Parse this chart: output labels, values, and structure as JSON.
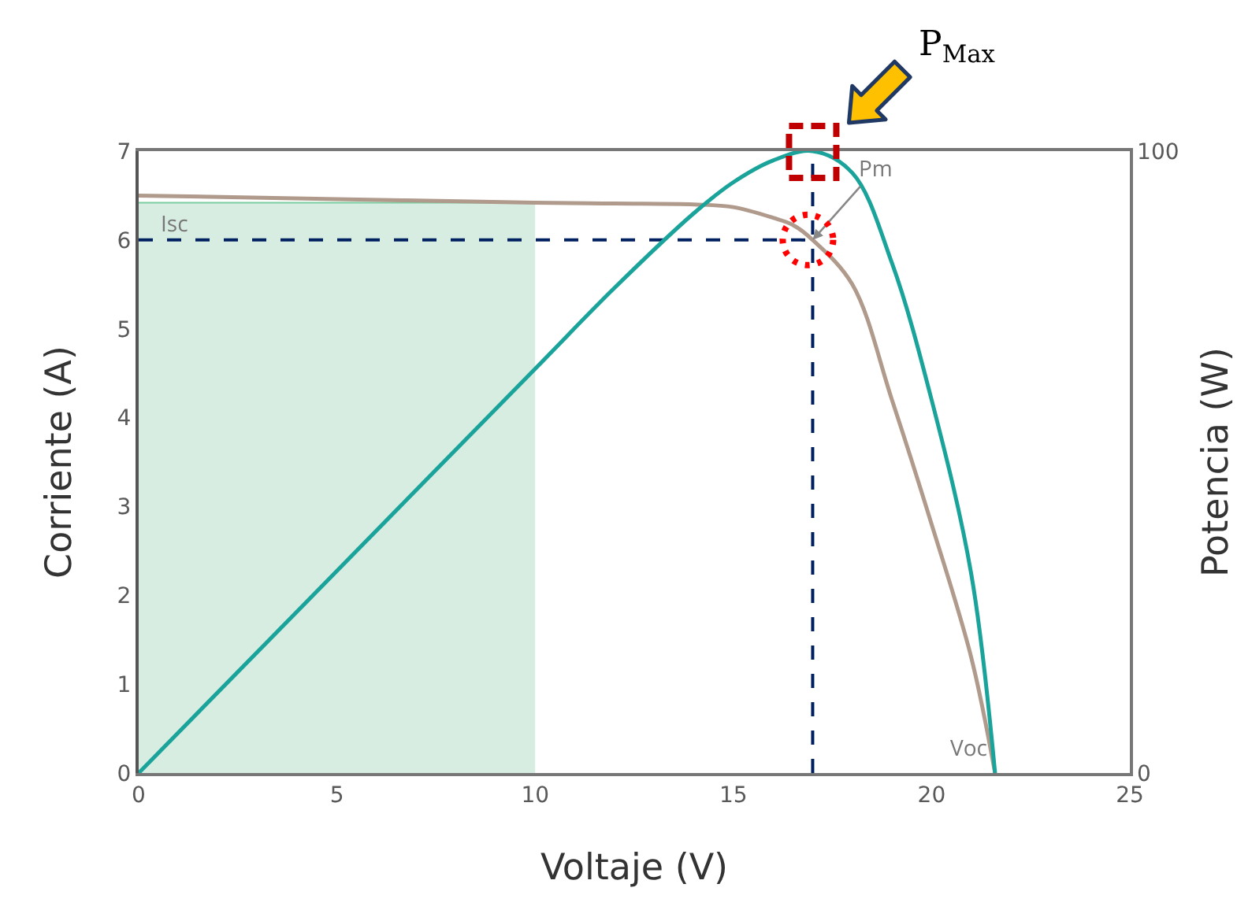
{
  "chart_data": {
    "type": "line",
    "xlabel": "Voltaje (V)",
    "ylabel": "Corriente (A)",
    "y2label": "Potencia (W)",
    "xlim": [
      0,
      25
    ],
    "xticks": [
      0,
      5,
      10,
      15,
      20,
      25
    ],
    "ylim": [
      0,
      7
    ],
    "yticks": [
      0,
      1,
      2,
      3,
      4,
      5,
      6,
      7
    ],
    "y2lim": [
      0,
      100
    ],
    "y2ticks": [
      0,
      100
    ],
    "grid": false,
    "series": [
      {
        "type": "area",
        "color": "#d7ede2",
        "x": [
          0,
          10
        ],
        "values": [
          6.42,
          6.42
        ]
      },
      {
        "color": "#b09a8c",
        "x": [
          0,
          5,
          10,
          12,
          14,
          15,
          16,
          16.5,
          17,
          18,
          19,
          20,
          21,
          21.6
        ],
        "values": [
          6.5,
          6.46,
          6.42,
          6.41,
          6.4,
          6.37,
          6.25,
          6.17,
          6.0,
          5.5,
          4.2,
          2.8,
          1.3,
          0
        ]
      },
      {
        "axis": "y2",
        "color": "#1aa39a",
        "x": [
          0,
          5,
          10,
          12,
          14,
          15,
          16,
          17,
          18,
          19,
          20,
          21,
          21.6
        ],
        "values": [
          0,
          32.5,
          65,
          78,
          90,
          95,
          98.5,
          100,
          96.5,
          82,
          60,
          32,
          0
        ]
      },
      {
        "line_style": "dashed",
        "color": "#002060",
        "x": [
          0,
          17
        ],
        "values": [
          6,
          6
        ]
      },
      {
        "line_style": "dashed",
        "color": "#002060",
        "x": [
          17,
          17
        ],
        "values": [
          0,
          7
        ]
      }
    ],
    "annotations": [
      {
        "text": "Isc",
        "x": 0,
        "y": 6.42
      },
      {
        "text": "Pm",
        "x": 17,
        "y": 6
      },
      {
        "text": "Voc",
        "x": 21.6,
        "y": 0
      },
      "P$_{Max}$"
    ]
  }
}
